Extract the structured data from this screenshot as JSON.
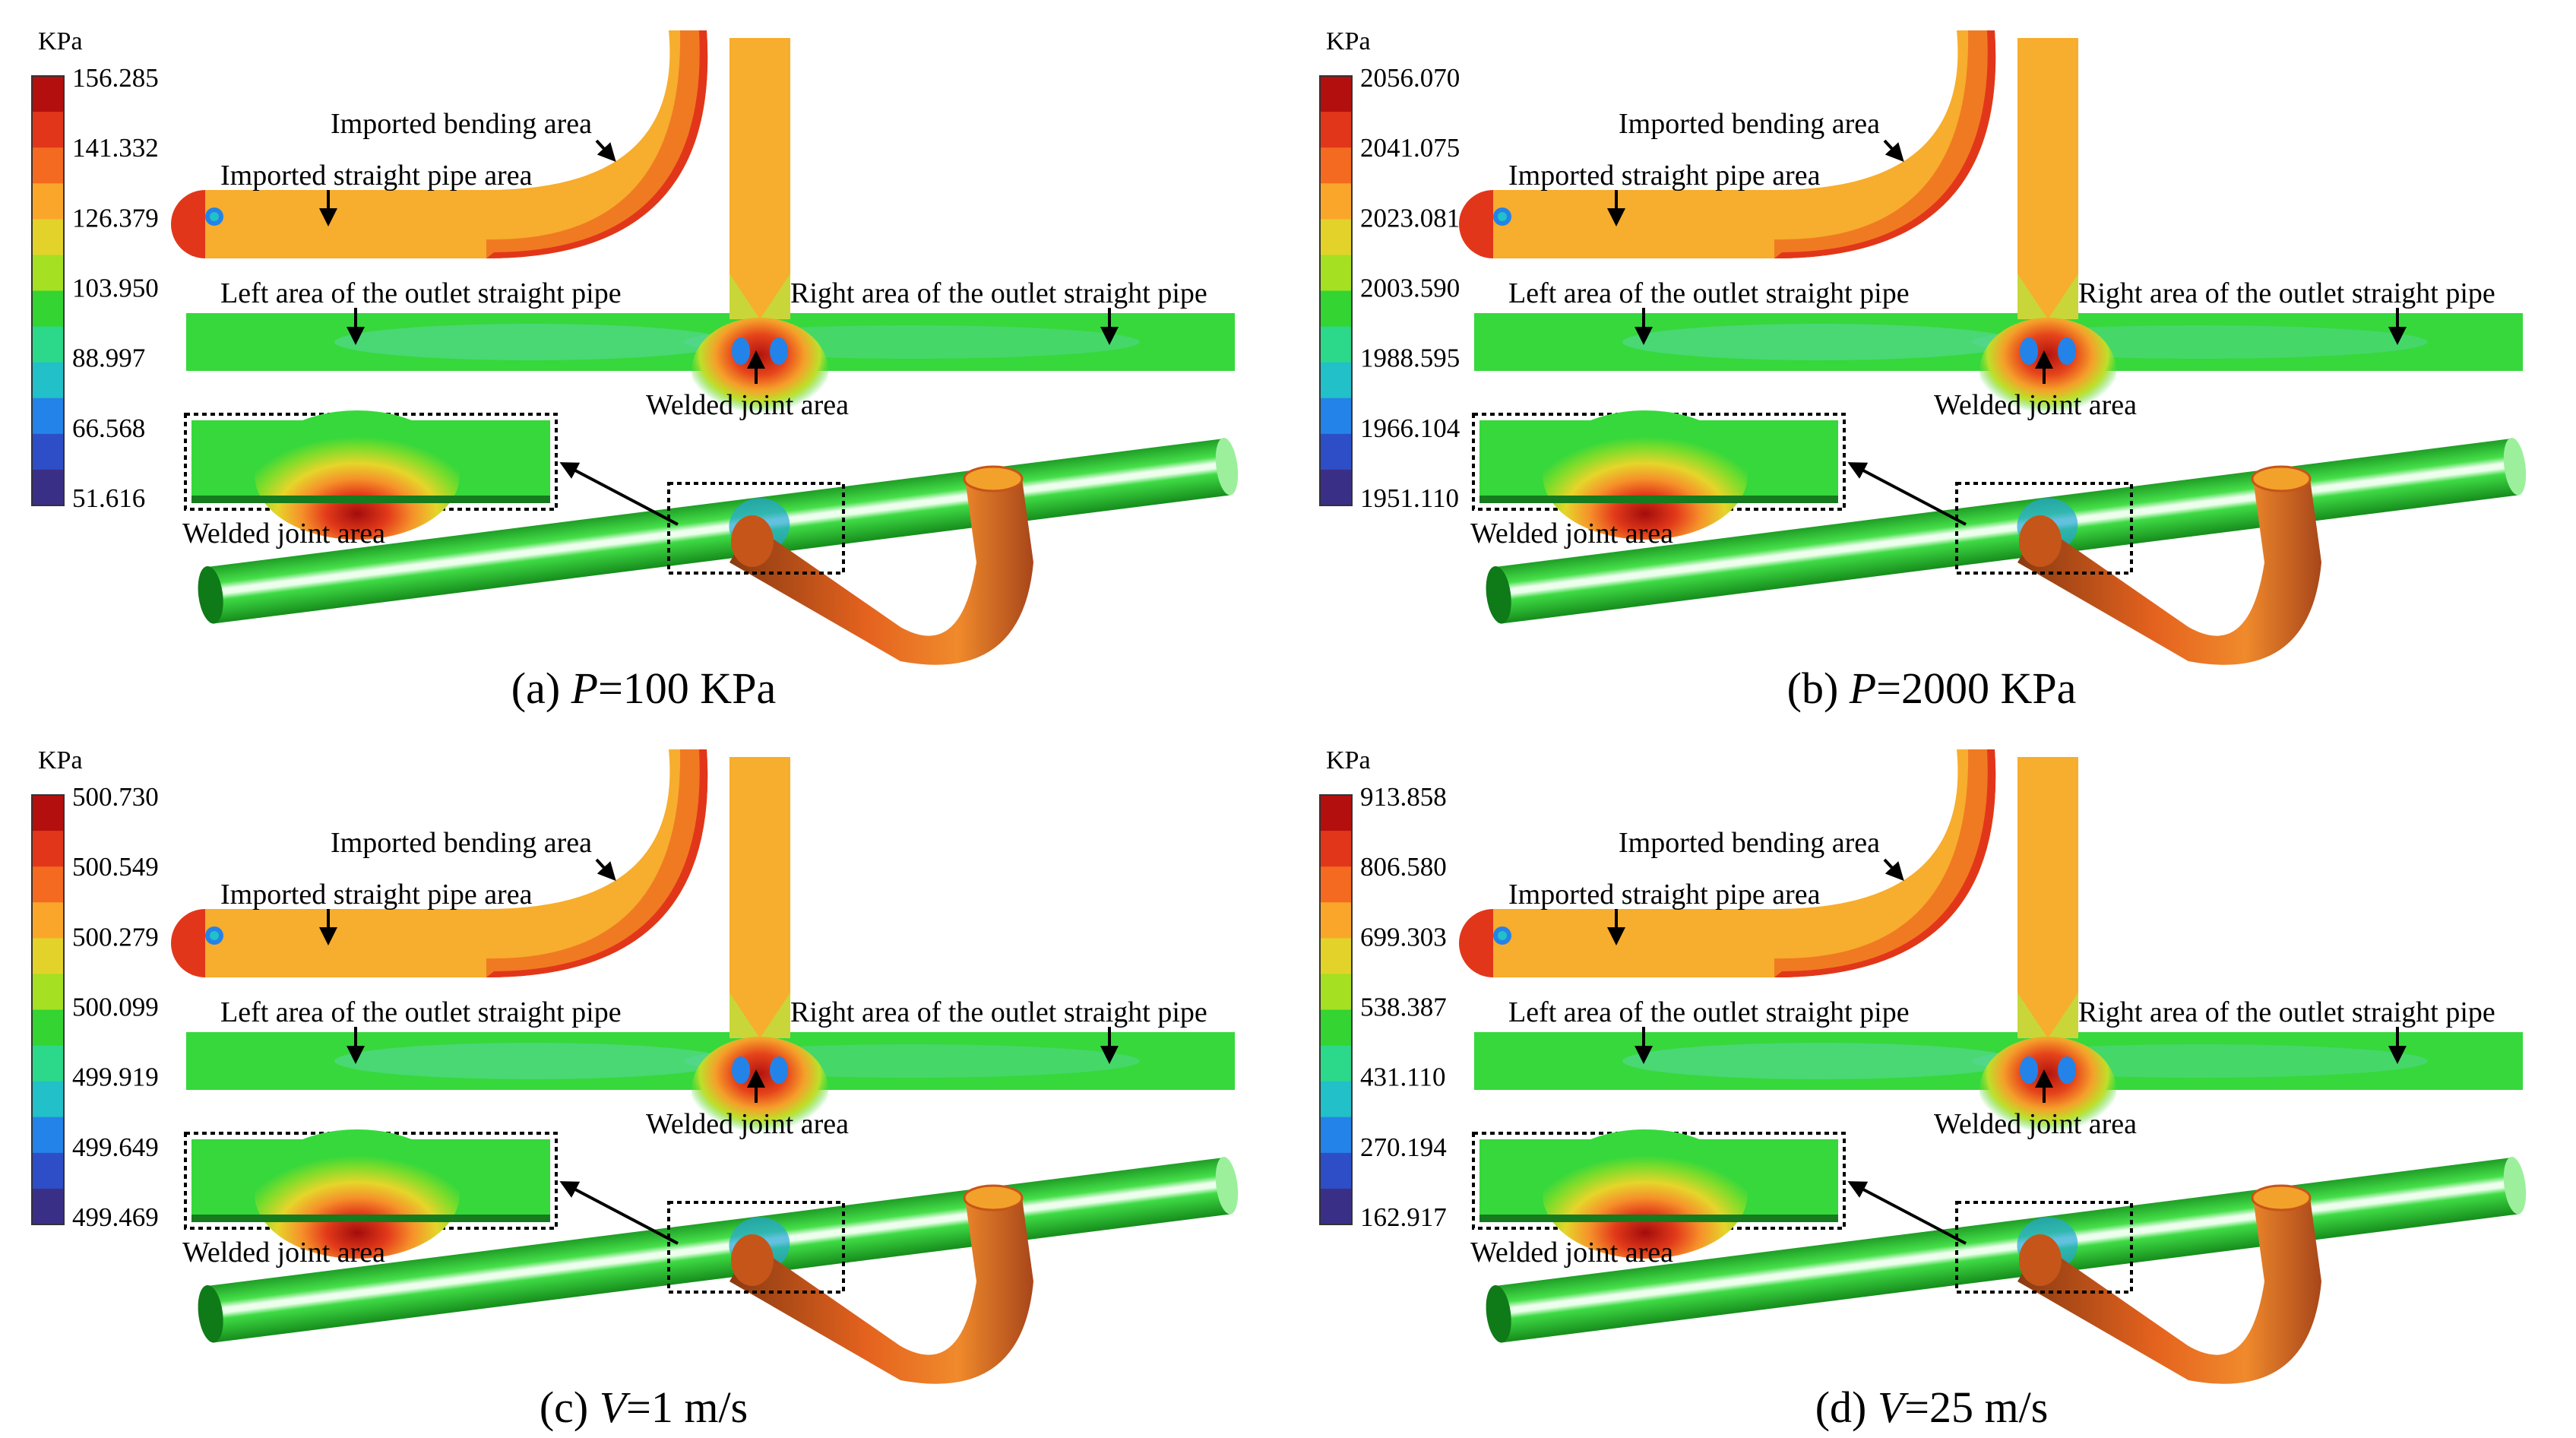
{
  "panels": [
    {
      "caption_prefix": "(a) ",
      "caption_var": "P",
      "caption_rest": "=100 KPa",
      "legend_unit": "KPa",
      "legend_ticks": [
        "156.285",
        "141.332",
        "126.379",
        "103.950",
        "88.997",
        "66.568",
        "51.616"
      ]
    },
    {
      "caption_prefix": "(b) ",
      "caption_var": "P",
      "caption_rest": "=2000 KPa",
      "legend_unit": "KPa",
      "legend_ticks": [
        "2056.070",
        "2041.075",
        "2023.081",
        "2003.590",
        "1988.595",
        "1966.104",
        "1951.110"
      ]
    },
    {
      "caption_prefix": "(c) ",
      "caption_var": "V",
      "caption_rest": "=1 m/s",
      "legend_unit": "KPa",
      "legend_ticks": [
        "500.730",
        "500.549",
        "500.279",
        "500.099",
        "499.919",
        "499.649",
        "499.469"
      ]
    },
    {
      "caption_prefix": "(d) ",
      "caption_var": "V",
      "caption_rest": "=25 m/s",
      "legend_unit": "KPa",
      "legend_ticks": [
        "913.858",
        "806.580",
        "699.303",
        "538.387",
        "431.110",
        "270.194",
        "162.917"
      ]
    }
  ],
  "annotations": {
    "bending": "Imported bending area",
    "straight": "Imported straight pipe area",
    "left_outlet": "Left area of the outlet straight pipe",
    "right_outlet": "Right area of the outlet straight pipe",
    "welded": "Welded joint area",
    "welded_inset": "Welded joint area"
  },
  "colors": {
    "scale": [
      "#b30f0f",
      "#e2361a",
      "#f36a20",
      "#f9a62a",
      "#e3d22a",
      "#a5e022",
      "#34d432",
      "#2cd98a",
      "#22c0c8",
      "#2483e8",
      "#2d4ec7",
      "#3a2f86"
    ],
    "pipe_green": "#36d83c",
    "pipe_orange": "#f7ad2d",
    "bend_orange": "#f07a22"
  }
}
